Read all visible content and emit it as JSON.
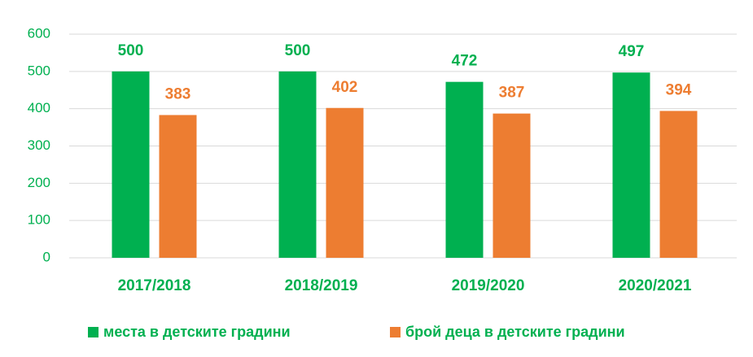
{
  "chart_data": {
    "type": "bar",
    "categories": [
      "2017/2018",
      "2018/2019",
      "2019/2020",
      "2020/2021"
    ],
    "series": [
      {
        "name": "места в детските градини",
        "color": "#00b050",
        "values": [
          500,
          500,
          472,
          497
        ]
      },
      {
        "name": "брой деца в детските градини",
        "color": "#ed7d31",
        "values": [
          383,
          402,
          387,
          394
        ]
      }
    ],
    "ylim": [
      0,
      600
    ],
    "yticks": [
      0,
      100,
      200,
      300,
      400,
      500,
      600
    ],
    "grid": true,
    "legend": "bottom"
  }
}
